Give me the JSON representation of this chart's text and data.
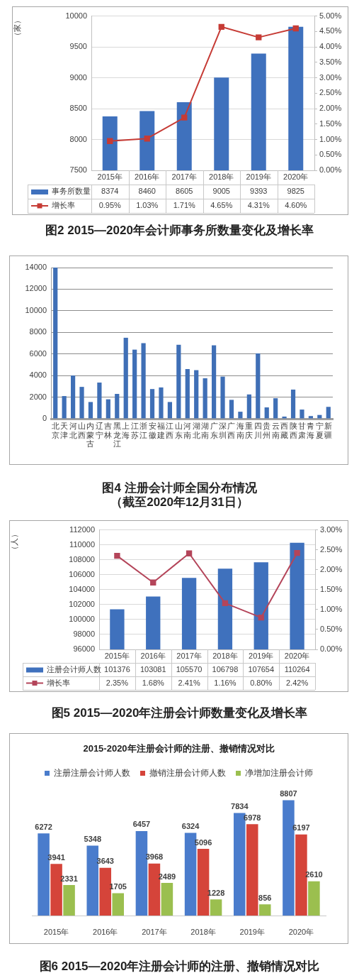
{
  "chart_data": [
    {
      "type": "bar",
      "title": "图2 2015—2020年会计师事务所数量变化及增长率",
      "ylabel": "（家）",
      "categories": [
        "2015年",
        "2016年",
        "2017年",
        "2018年",
        "2019年",
        "2020年"
      ],
      "series": [
        {
          "name": "事务所数量",
          "color": "#3f71bd",
          "values": [
            8374,
            8460,
            8605,
            9005,
            9393,
            9825
          ],
          "value_labels": [
            "8374",
            "8460",
            "8605",
            "9005",
            "9393",
            "9825"
          ]
        },
        {
          "name": "增长率",
          "type": "line",
          "axis": "y2",
          "color": "#c63b35",
          "values": [
            0.95,
            1.03,
            1.71,
            4.65,
            4.31,
            4.6
          ],
          "value_labels": [
            "0.95%",
            "1.03%",
            "1.71%",
            "4.65%",
            "4.31%",
            "4.60%"
          ]
        }
      ],
      "ylim": [
        7500,
        10000
      ],
      "yticks": [
        7500,
        8000,
        8500,
        9000,
        9500,
        10000
      ],
      "y2lim": [
        0,
        5
      ],
      "y2ticks": [
        {
          "value": 0,
          "label": "0.00%"
        },
        {
          "value": 0.5,
          "label": "0.50%"
        },
        {
          "value": 1,
          "label": "1.00%"
        },
        {
          "value": 1.5,
          "label": "1.50%"
        },
        {
          "value": 2,
          "label": "2.00%"
        },
        {
          "value": 2.5,
          "label": "2.50%"
        },
        {
          "value": 3,
          "label": "3.00%"
        },
        {
          "value": 3.5,
          "label": "3.50%"
        },
        {
          "value": 4,
          "label": "4.00%"
        },
        {
          "value": 4.5,
          "label": "4.50%"
        },
        {
          "value": 5,
          "label": "5.00%"
        }
      ],
      "grid": "y",
      "legend": "bottom",
      "marker": "square"
    },
    {
      "type": "bar",
      "title": "图4 注册会计师全国分布情况",
      "subtitle": "（截至2020年12月31日）",
      "categories": [
        "北京",
        "天津",
        "河北",
        "山西",
        "内蒙古",
        "辽宁",
        "吉林",
        "黑龙江",
        "上海",
        "江苏",
        "浙江",
        "安徽",
        "福建",
        "江西",
        "山东",
        "河南",
        "湖北",
        "湖南",
        "广东",
        "深圳",
        "广西",
        "海南",
        "重庆",
        "四川",
        "贵州",
        "云南",
        "西藏",
        "陕西",
        "甘肃",
        "青海",
        "宁夏",
        "新疆"
      ],
      "values": [
        14000,
        2100,
        4000,
        2950,
        1550,
        3350,
        1800,
        2300,
        7500,
        6400,
        7000,
        2750,
        2900,
        1550,
        6850,
        4600,
        4500,
        3750,
        6800,
        3900,
        1750,
        650,
        2250,
        6050,
        1050,
        1900,
        200,
        2700,
        850,
        250,
        350,
        1100
      ],
      "color": "#3f6fb6",
      "ylim": [
        0,
        14000
      ],
      "yticks": [
        0,
        2000,
        4000,
        6000,
        8000,
        10000,
        12000,
        14000
      ],
      "grid": "y"
    },
    {
      "type": "bar",
      "title": "图5 2015—2020年注册会计师数量变化及增长率",
      "ylabel": "（人）",
      "categories": [
        "2015年",
        "2016年",
        "2017年",
        "2018年",
        "2019年",
        "2020年"
      ],
      "series": [
        {
          "name": "注册会计师人数",
          "color": "#3f71bd",
          "values": [
            101376,
            103081,
            105570,
            106798,
            107654,
            110264
          ],
          "value_labels": [
            "101376",
            "103081",
            "105570",
            "106798",
            "107654",
            "110264"
          ]
        },
        {
          "name": "增长率",
          "type": "line",
          "axis": "y2",
          "color": "#b4455a",
          "values": [
            2.35,
            1.68,
            2.41,
            1.16,
            0.8,
            2.42
          ],
          "value_labels": [
            "2.35%",
            "1.68%",
            "2.41%",
            "1.16%",
            "0.80%",
            "2.42%"
          ]
        }
      ],
      "ylim": [
        96000,
        112000
      ],
      "yticks": [
        96000,
        98000,
        100000,
        102000,
        104000,
        106000,
        108000,
        110000,
        112000
      ],
      "y2lim": [
        0,
        3
      ],
      "y2ticks": [
        {
          "value": 0,
          "label": "0.00%"
        },
        {
          "value": 0.5,
          "label": "0.50%"
        },
        {
          "value": 1,
          "label": "1.00%"
        },
        {
          "value": 1.5,
          "label": "1.50%"
        },
        {
          "value": 2,
          "label": "2.00%"
        },
        {
          "value": 2.5,
          "label": "2.50%"
        },
        {
          "value": 3,
          "label": "3.00%"
        }
      ],
      "grid": "y",
      "legend": "bottom",
      "marker": "square"
    },
    {
      "type": "bar",
      "title": "2015-2020年注册会计师的注册、撤销情况对比",
      "annotations": [
        "图6 2015—2020年注册会计师的注册、撤销情况对比"
      ],
      "categories": [
        "2015年",
        "2016年",
        "2017年",
        "2018年",
        "2019年",
        "2020年"
      ],
      "series": [
        {
          "name": "注册注册会计师人数",
          "color": "#4a7ccc",
          "values": [
            6272,
            5348,
            6457,
            6324,
            7834,
            8807
          ]
        },
        {
          "name": "撤销注册会计师人数",
          "color": "#d5443a",
          "values": [
            3941,
            3643,
            3968,
            5096,
            6978,
            6197
          ]
        },
        {
          "name": "净增加注册会计师",
          "color": "#9bbf4f",
          "values": [
            2331,
            1705,
            2489,
            1228,
            856,
            2610
          ]
        }
      ],
      "data_labels": true,
      "legend": "top",
      "tick_labels": "x"
    }
  ]
}
